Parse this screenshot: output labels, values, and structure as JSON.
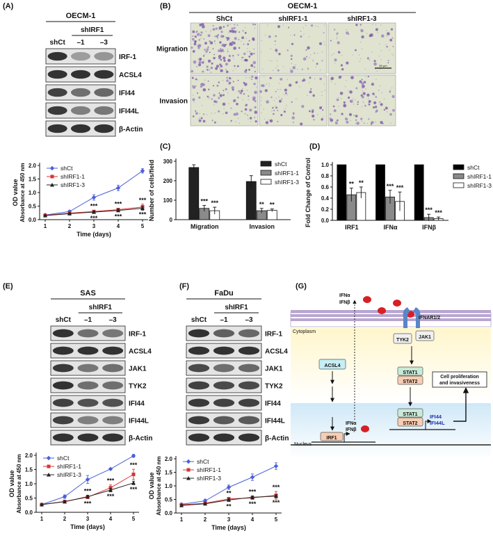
{
  "panels": {
    "A": {
      "label": "(A)",
      "cell_line": "OECM-1",
      "group": "shIRF1",
      "lanes": [
        "shCt",
        "–1",
        "–3"
      ],
      "proteins": [
        "IRF-1",
        "ACSL4",
        "IFI44",
        "IFI44L",
        "β-Actin"
      ]
    },
    "B": {
      "label": "(B)",
      "cell_line": "OECM-1",
      "columns": [
        "ShCt",
        "shIRF1-1",
        "shIRF1-3"
      ],
      "rows": [
        "Migration",
        "Invasion"
      ],
      "scalebar": "50 μm"
    },
    "C": {
      "label": "(C)"
    },
    "D": {
      "label": "(D)"
    },
    "E": {
      "label": "(E)",
      "cell_line": "SAS",
      "group": "shIRF1",
      "lanes": [
        "shCt",
        "–1",
        "–3"
      ],
      "proteins": [
        "IRF-1",
        "ACSL4",
        "JAK1",
        "TYK2",
        "IFI44",
        "IFI44L",
        "β-Actin"
      ]
    },
    "F": {
      "label": "(F)",
      "cell_line": "FaDu",
      "group": "shIRF1",
      "lanes": [
        "shCt",
        "–1",
        "–3"
      ],
      "proteins": [
        "IRF-1",
        "ACSL4",
        "JAK1",
        "TYK2",
        "IFI44",
        "IFI44L",
        "β-Actin"
      ]
    },
    "G": {
      "label": "(G)",
      "ifn_ligand": "IFNα\nIFNβ",
      "receptor": "IFNAR1/2",
      "cytoplasm": "Cytoplasm",
      "nucleus": "Nucleus",
      "tyk2": "TYK2",
      "jak1": "JAK1",
      "acsl4": "ACSL4",
      "stat1": "STAT1",
      "stat2": "STAT2",
      "irf1": "IRF1",
      "ifn_gene": "IFNα\nIFNβ",
      "isg": "IFI44\nIFI44L",
      "outcome": "Cell proliferation\nand invasiveness"
    }
  },
  "chart_data": [
    {
      "id": "A-growth",
      "type": "line",
      "ylabel": "OD value\nAbsorbance at 450 nm",
      "xlabel": "Time (days)",
      "x": [
        1,
        2,
        3,
        4,
        5
      ],
      "ylim": [
        0,
        2.0
      ],
      "yticks": [
        "0.0",
        "0.5",
        "1.0",
        "1.5",
        "2.0"
      ],
      "legend_position": "top-left",
      "series": [
        {
          "name": "shCt",
          "color": "#4a5fd9",
          "marker": "diamond",
          "values": [
            0.17,
            0.3,
            0.82,
            1.17,
            1.8
          ],
          "err": [
            0.03,
            0.04,
            0.1,
            0.1,
            0.08
          ]
        },
        {
          "name": "shIRF1-1",
          "color": "#d93434",
          "marker": "square",
          "values": [
            0.16,
            0.24,
            0.3,
            0.37,
            0.47
          ],
          "err": [
            0.02,
            0.03,
            0.04,
            0.05,
            0.1
          ]
        },
        {
          "name": "shIRF1-3",
          "color": "#222222",
          "marker": "triangle",
          "values": [
            0.15,
            0.22,
            0.28,
            0.34,
            0.42
          ],
          "err": [
            0.02,
            0.03,
            0.04,
            0.05,
            0.07
          ]
        }
      ],
      "annotations": [
        {
          "x": 3,
          "above": "***",
          "below": "***"
        },
        {
          "x": 4,
          "above": "***",
          "below": "***"
        },
        {
          "x": 5,
          "above": "***",
          "below": "***"
        }
      ]
    },
    {
      "id": "C",
      "type": "bar",
      "ylabel": "Number of cells/field",
      "categories": [
        "Migration",
        "Invasion"
      ],
      "ylim": [
        0,
        300
      ],
      "yticks": [
        "0",
        "100",
        "200",
        "300"
      ],
      "legend_position": "top-right",
      "series": [
        {
          "name": "shCt",
          "color": "#222222",
          "values": [
            268,
            196
          ],
          "err": [
            14,
            30
          ]
        },
        {
          "name": "shIRF1-1",
          "color": "#8a8a8a",
          "values": [
            58,
            46
          ],
          "err": [
            15,
            12
          ]
        },
        {
          "name": "shIRF1-3",
          "color": "#ffffff",
          "values": [
            46,
            48
          ],
          "err": [
            18,
            7
          ]
        }
      ],
      "significance": [
        [
          "***",
          "***"
        ],
        [
          "**",
          "**"
        ]
      ]
    },
    {
      "id": "D",
      "type": "bar",
      "ylabel": "Fold Change of Control",
      "categories": [
        "IRF1",
        "IFNα",
        "IFNβ"
      ],
      "ylim": [
        0,
        1.0
      ],
      "yticks": [
        "0.0",
        "0.2",
        "0.4",
        "0.6",
        "0.8",
        "1.0"
      ],
      "legend_position": "top-right",
      "series": [
        {
          "name": "shCt",
          "color": "#000000",
          "values": [
            1.0,
            1.0,
            1.0
          ],
          "err": [
            0,
            0,
            0
          ]
        },
        {
          "name": "shIRF1-1",
          "color": "#8a8a8a",
          "values": [
            0.46,
            0.42,
            0.05
          ],
          "err": [
            0.12,
            0.12,
            0.06
          ]
        },
        {
          "name": "shIRF1-3",
          "color": "#ffffff",
          "values": [
            0.5,
            0.34,
            0.03
          ],
          "err": [
            0.1,
            0.17,
            0.03
          ]
        }
      ],
      "significance": [
        [
          "**",
          "**"
        ],
        [
          "***",
          "***"
        ],
        [
          "***",
          "***"
        ]
      ]
    },
    {
      "id": "E-growth",
      "type": "line",
      "ylabel": "OD value\nAbsorbance at 450 nm",
      "xlabel": "Time (days)",
      "x": [
        1,
        2,
        3,
        4,
        5
      ],
      "ylim": [
        0,
        2.0
      ],
      "yticks": [
        "0.0",
        "0.5",
        "1.0",
        "1.5",
        "2.0"
      ],
      "legend_position": "top-left",
      "series": [
        {
          "name": "shCt",
          "color": "#4a5fd9",
          "marker": "diamond",
          "values": [
            0.27,
            0.55,
            1.15,
            1.52,
            1.98
          ],
          "err": [
            0.02,
            0.06,
            0.14,
            0.03,
            0.05
          ]
        },
        {
          "name": "shIRF1-1",
          "color": "#d93434",
          "marker": "square",
          "values": [
            0.27,
            0.38,
            0.53,
            0.86,
            1.33
          ],
          "err": [
            0.02,
            0.03,
            0.05,
            0.1,
            0.18
          ]
        },
        {
          "name": "shIRF1-3",
          "color": "#222222",
          "marker": "triangle",
          "values": [
            0.27,
            0.37,
            0.55,
            0.78,
            1.03
          ],
          "err": [
            0.02,
            0.03,
            0.05,
            0.06,
            0.06
          ]
        }
      ],
      "annotations": [
        {
          "x": 3,
          "above": "***",
          "below": "***"
        },
        {
          "x": 4,
          "above": "***",
          "below": "***"
        },
        {
          "x": 5,
          "above": "***",
          "below": "***"
        }
      ]
    },
    {
      "id": "F-growth",
      "type": "line",
      "ylabel": "OD value\nAbsorbance at 450 nm",
      "xlabel": "Time (days)",
      "x": [
        1,
        2,
        3,
        4,
        5
      ],
      "ylim": [
        0,
        2.0
      ],
      "yticks": [
        "0.0",
        "0.5",
        "1.0",
        "1.5",
        "2.0"
      ],
      "legend_position": "top-left",
      "series": [
        {
          "name": "shCt",
          "color": "#4a5fd9",
          "marker": "diamond",
          "values": [
            0.32,
            0.45,
            0.95,
            1.32,
            1.73
          ],
          "err": [
            0.03,
            0.06,
            0.08,
            0.12,
            0.12
          ]
        },
        {
          "name": "shIRF1-1",
          "color": "#d93434",
          "marker": "square",
          "values": [
            0.3,
            0.36,
            0.52,
            0.56,
            0.65
          ],
          "err": [
            0.03,
            0.04,
            0.06,
            0.06,
            0.14
          ]
        },
        {
          "name": "shIRF1-3",
          "color": "#222222",
          "marker": "triangle",
          "values": [
            0.28,
            0.34,
            0.48,
            0.58,
            0.62
          ],
          "err": [
            0.03,
            0.04,
            0.05,
            0.05,
            0.05
          ]
        }
      ],
      "annotations": [
        {
          "x": 3,
          "above": "**",
          "below": "**"
        },
        {
          "x": 4,
          "above": "***",
          "below": "***"
        },
        {
          "x": 5,
          "above": "***",
          "below": "***"
        }
      ]
    }
  ]
}
